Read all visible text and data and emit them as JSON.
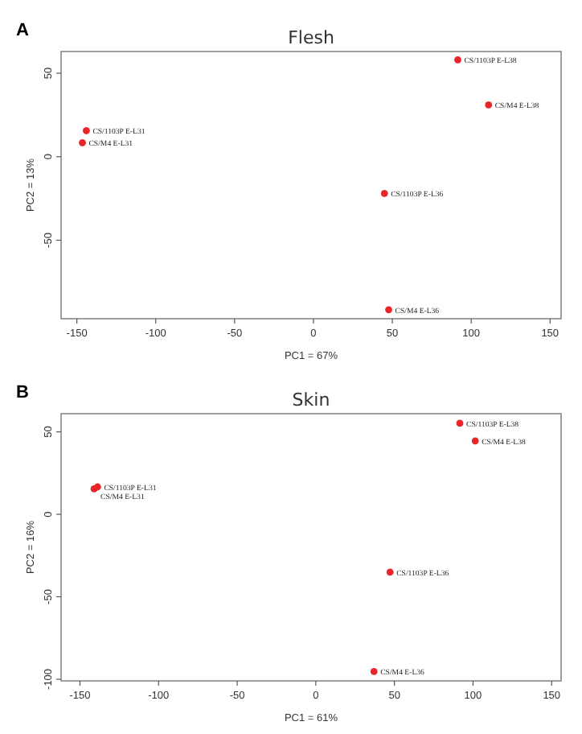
{
  "chart_data": [
    {
      "type": "scatter",
      "title": "Flesh",
      "xlabel": "PC1 = 67%",
      "ylabel": "PC2 = 13%",
      "xlim": [
        -160,
        157
      ],
      "ylim": [
        -97,
        63
      ],
      "xticks": [
        -150,
        -100,
        -50,
        0,
        50,
        100,
        150
      ],
      "yticks": [
        -50,
        0,
        50
      ],
      "marker": "circle",
      "series": [
        {
          "color": "#e8262a",
          "x": [
            91.5,
            111,
            -144,
            -146.5,
            45,
            47.7
          ],
          "values": [
            58,
            31,
            15.6,
            8.4,
            -22,
            -91.6
          ]
        }
      ],
      "annotations": [
        "A",
        {
          "text": "CS/1103P  E-L38",
          "x": 91.5,
          "y": 58
        },
        {
          "text": "CS/M4 E-L38",
          "x": 111,
          "y": 31
        },
        {
          "text": "CS/1103P  E-L31",
          "x": -144,
          "y": 15.6
        },
        {
          "text": "CS/M4 E-L31",
          "x": -146.5,
          "y": 8.4
        },
        {
          "text": "CS/1103P  E-L36",
          "x": 45,
          "y": -22
        },
        {
          "text": "CS/M4 E-L36",
          "x": 47.7,
          "y": -91.6
        }
      ]
    },
    {
      "type": "scatter",
      "title": "Skin",
      "xlabel": "PC1 = 61%",
      "ylabel": "PC2 = 16%",
      "xlim": [
        -162,
        156
      ],
      "ylim": [
        -101,
        61
      ],
      "xticks": [
        -150,
        -100,
        -50,
        0,
        50,
        100,
        150
      ],
      "yticks": [
        -100,
        -50,
        0,
        50
      ],
      "marker": "circle",
      "series": [
        {
          "color": "#e8262a",
          "x": [
            91.6,
            101.4,
            -138.8,
            -141,
            47.2,
            37
          ],
          "values": [
            55.2,
            44.5,
            16.6,
            15.4,
            -35.1,
            -95.3
          ]
        }
      ],
      "annotations": [
        "B",
        {
          "text": "CS/1103P  E-L38",
          "x": 91.6,
          "y": 55.2
        },
        {
          "text": "CS/M4 E-L38",
          "x": 101.4,
          "y": 44.5
        },
        {
          "text": "CS/1103P  E-L31",
          "x": -138.8,
          "y": 16.6
        },
        {
          "text": "CS/M4 E-L31",
          "x": -141,
          "y": 15.4
        },
        {
          "text": "CS/1103P  E-L36",
          "x": 47.2,
          "y": -35.1
        },
        {
          "text": "CS/M4 E-L36",
          "x": 37,
          "y": -95.3
        }
      ]
    }
  ]
}
